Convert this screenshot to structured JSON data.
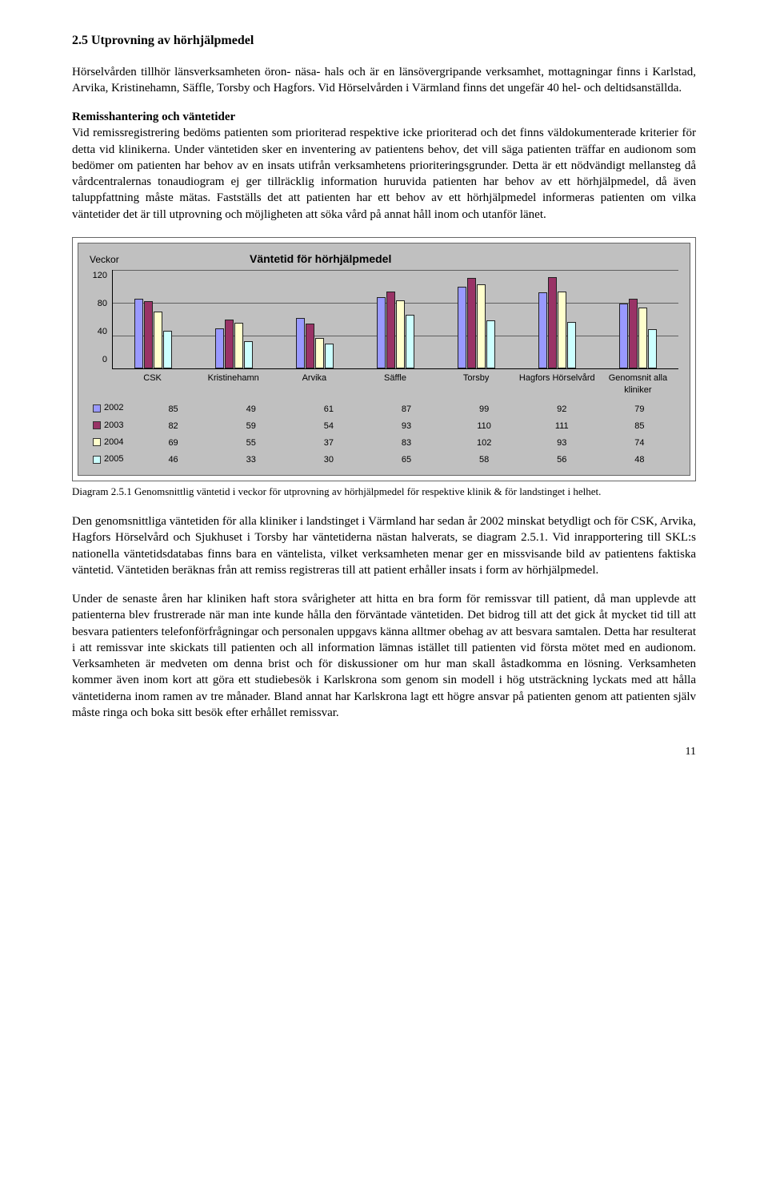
{
  "heading": "2.5 Utprovning av hörhjälpmedel",
  "para1": "Hörselvården tillhör länsverksamheten öron- näsa- hals och är en länsövergripande verksamhet, mottagningar finns i Karlstad, Arvika, Kristinehamn, Säffle, Torsby och Hagfors. Vid Hörselvården i Värmland finns det ungefär 40 hel- och deltidsanställda.",
  "subhead": "Remisshantering och väntetider",
  "para2": "Vid remissregistrering bedöms patienten som prioriterad respektive icke prioriterad och det finns väldokumenterade kriterier för detta vid klinikerna. Under väntetiden sker en inventering av patientens behov, det vill säga patienten träffar en audionom som bedömer om patienten har behov av en insats utifrån verksamhetens prioriteringsgrunder. Detta är ett nödvändigt mellansteg då vårdcentralernas tonaudiogram ej ger tillräcklig information huruvida patienten har behov av ett hörhjälpmedel, då även taluppfattning måste mätas. Fastställs det att patienten har ett behov av ett hörhjälpmedel informeras patienten om vilka väntetider det är till utprovning och möjligheten att söka vård på annat håll inom och utanför länet.",
  "chart": {
    "type": "bar",
    "veckor_label": "Veckor",
    "title": "Väntetid för hörhjälpmedel",
    "y_ticks": [
      "120",
      "80",
      "40",
      "0"
    ],
    "y_max": 120,
    "categories": [
      "CSK",
      "Kristinehamn",
      "Arvika",
      "Säffle",
      "Torsby",
      "Hagfors Hörselvård",
      "Genomsnit alla kliniker"
    ],
    "series": [
      {
        "year": "2002",
        "color": "#9999ff",
        "values": [
          85,
          49,
          61,
          87,
          99,
          92,
          79
        ]
      },
      {
        "year": "2003",
        "color": "#993366",
        "values": [
          82,
          59,
          54,
          93,
          110,
          111,
          85
        ]
      },
      {
        "year": "2004",
        "color": "#ffffcc",
        "values": [
          69,
          55,
          37,
          83,
          102,
          93,
          74
        ]
      },
      {
        "year": "2005",
        "color": "#ccffff",
        "values": [
          46,
          33,
          30,
          65,
          58,
          56,
          48
        ]
      }
    ],
    "background": "#c0c0c0",
    "bar_border": "#222222"
  },
  "caption": "Diagram 2.5.1 Genomsnittlig väntetid i veckor för utprovning av hörhjälpmedel för respektive klinik & för landstinget i helhet.",
  "para3": "Den genomsnittliga väntetiden för alla kliniker i landstinget i Värmland har sedan år 2002 minskat betydligt och för CSK, Arvika, Hagfors Hörselvård och Sjukhuset i Torsby har väntetiderna nästan halverats, se diagram 2.5.1. Vid inrapportering till SKL:s nationella väntetidsdatabas finns bara en väntelista, vilket verksamheten menar ger en missvisande bild av patientens faktiska väntetid. Väntetiden beräknas från att remiss registreras till att patient erhåller insats i form av hörhjälpmedel.",
  "para4": "Under de senaste åren har kliniken haft stora svårigheter att hitta en bra form för remissvar till patient, då man upplevde att patienterna blev frustrerade när man inte kunde hålla den förväntade väntetiden. Det bidrog till att det gick åt mycket tid till att besvara patienters telefonförfrågningar och personalen uppgavs känna alltmer obehag av att besvara samtalen. Detta har resulterat i att remissvar inte skickats till patienten och all information lämnas istället till patienten vid första mötet med en audionom. Verksamheten är medveten om denna brist och för diskussioner om hur man skall åstadkomma en lösning. Verksamheten kommer även inom kort att göra ett studiebesök i Karlskrona som genom sin modell i hög utsträckning lyckats med att hålla väntetiderna inom ramen av tre månader. Bland annat har Karlskrona lagt ett högre ansvar på patienten genom att patienten själv måste ringa och boka sitt besök efter erhållet remissvar.",
  "page_number": "11"
}
